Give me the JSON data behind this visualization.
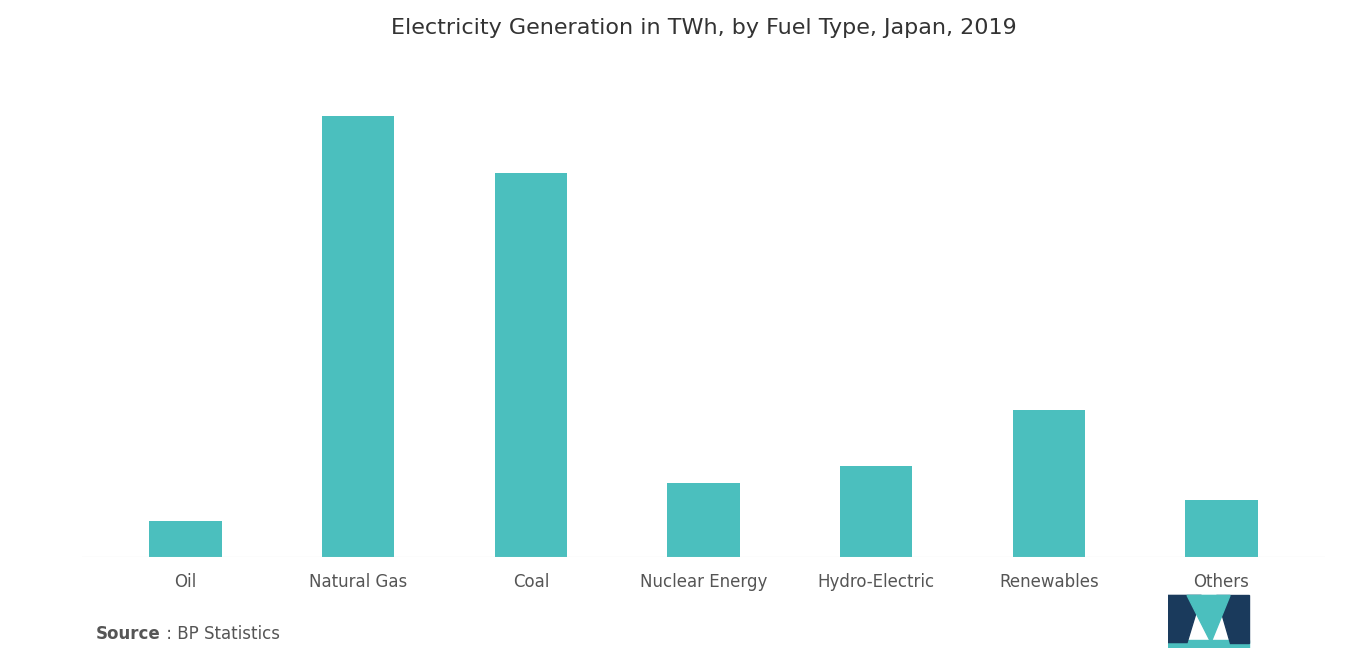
{
  "title": "Electricity Generation in TWh, by Fuel Type, Japan, 2019",
  "categories": [
    "Oil",
    "Natural Gas",
    "Coal",
    "Nuclear Energy",
    "Hydro-Electric",
    "Renewables",
    "Others"
  ],
  "values": [
    32,
    390,
    340,
    65,
    80,
    130,
    50
  ],
  "bar_color": "#4BBFBE",
  "background_color": "#ffffff",
  "source_bold": "Source",
  "source_rest": " : BP Statistics",
  "title_fontsize": 16,
  "label_fontsize": 12,
  "source_fontsize": 12,
  "bar_width": 0.42,
  "ylim_factor": 1.13
}
